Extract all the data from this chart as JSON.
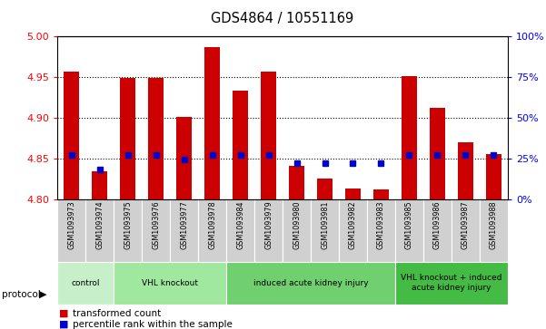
{
  "title": "GDS4864 / 10551169",
  "samples": [
    "GSM1093973",
    "GSM1093974",
    "GSM1093975",
    "GSM1093976",
    "GSM1093977",
    "GSM1093978",
    "GSM1093984",
    "GSM1093979",
    "GSM1093980",
    "GSM1093981",
    "GSM1093982",
    "GSM1093983",
    "GSM1093985",
    "GSM1093986",
    "GSM1093987",
    "GSM1093988"
  ],
  "bar_values": [
    4.956,
    4.834,
    4.949,
    4.949,
    4.901,
    4.987,
    4.933,
    4.956,
    4.841,
    4.825,
    4.813,
    4.812,
    4.951,
    4.912,
    4.87,
    4.855
  ],
  "percentile_values": [
    27,
    18,
    27,
    27,
    24,
    27,
    27,
    27,
    22,
    22,
    22,
    22,
    27,
    27,
    27,
    27
  ],
  "groups": [
    {
      "label": "control",
      "start": 0,
      "end": 2,
      "color": "#c8f0c8"
    },
    {
      "label": "VHL knockout",
      "start": 2,
      "end": 6,
      "color": "#a0e8a0"
    },
    {
      "label": "induced acute kidney injury",
      "start": 6,
      "end": 12,
      "color": "#70d070"
    },
    {
      "label": "VHL knockout + induced\nacute kidney injury",
      "start": 12,
      "end": 16,
      "color": "#44bb44"
    }
  ],
  "ymin": 4.8,
  "ymax": 5.0,
  "yticks": [
    4.8,
    4.85,
    4.9,
    4.95,
    5.0
  ],
  "bar_color": "#cc0000",
  "dot_color": "#0000cc",
  "bar_bottom": 4.8
}
